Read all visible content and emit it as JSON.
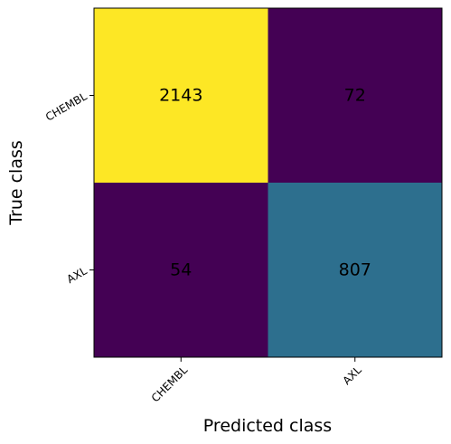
{
  "chart_data": {
    "type": "heatmap",
    "title": "",
    "xlabel": "Predicted class",
    "ylabel": "True class",
    "x_categories": [
      "CHEMBL",
      "AXL"
    ],
    "y_categories": [
      "CHEMBL",
      "AXL"
    ],
    "matrix": [
      [
        2143,
        72
      ],
      [
        54,
        807
      ]
    ],
    "colormap": "viridis",
    "cell_colors": [
      [
        "#fde725",
        "#440154"
      ],
      [
        "#440154",
        "#2d6f8e"
      ]
    ],
    "grid": false,
    "legend": "none"
  }
}
